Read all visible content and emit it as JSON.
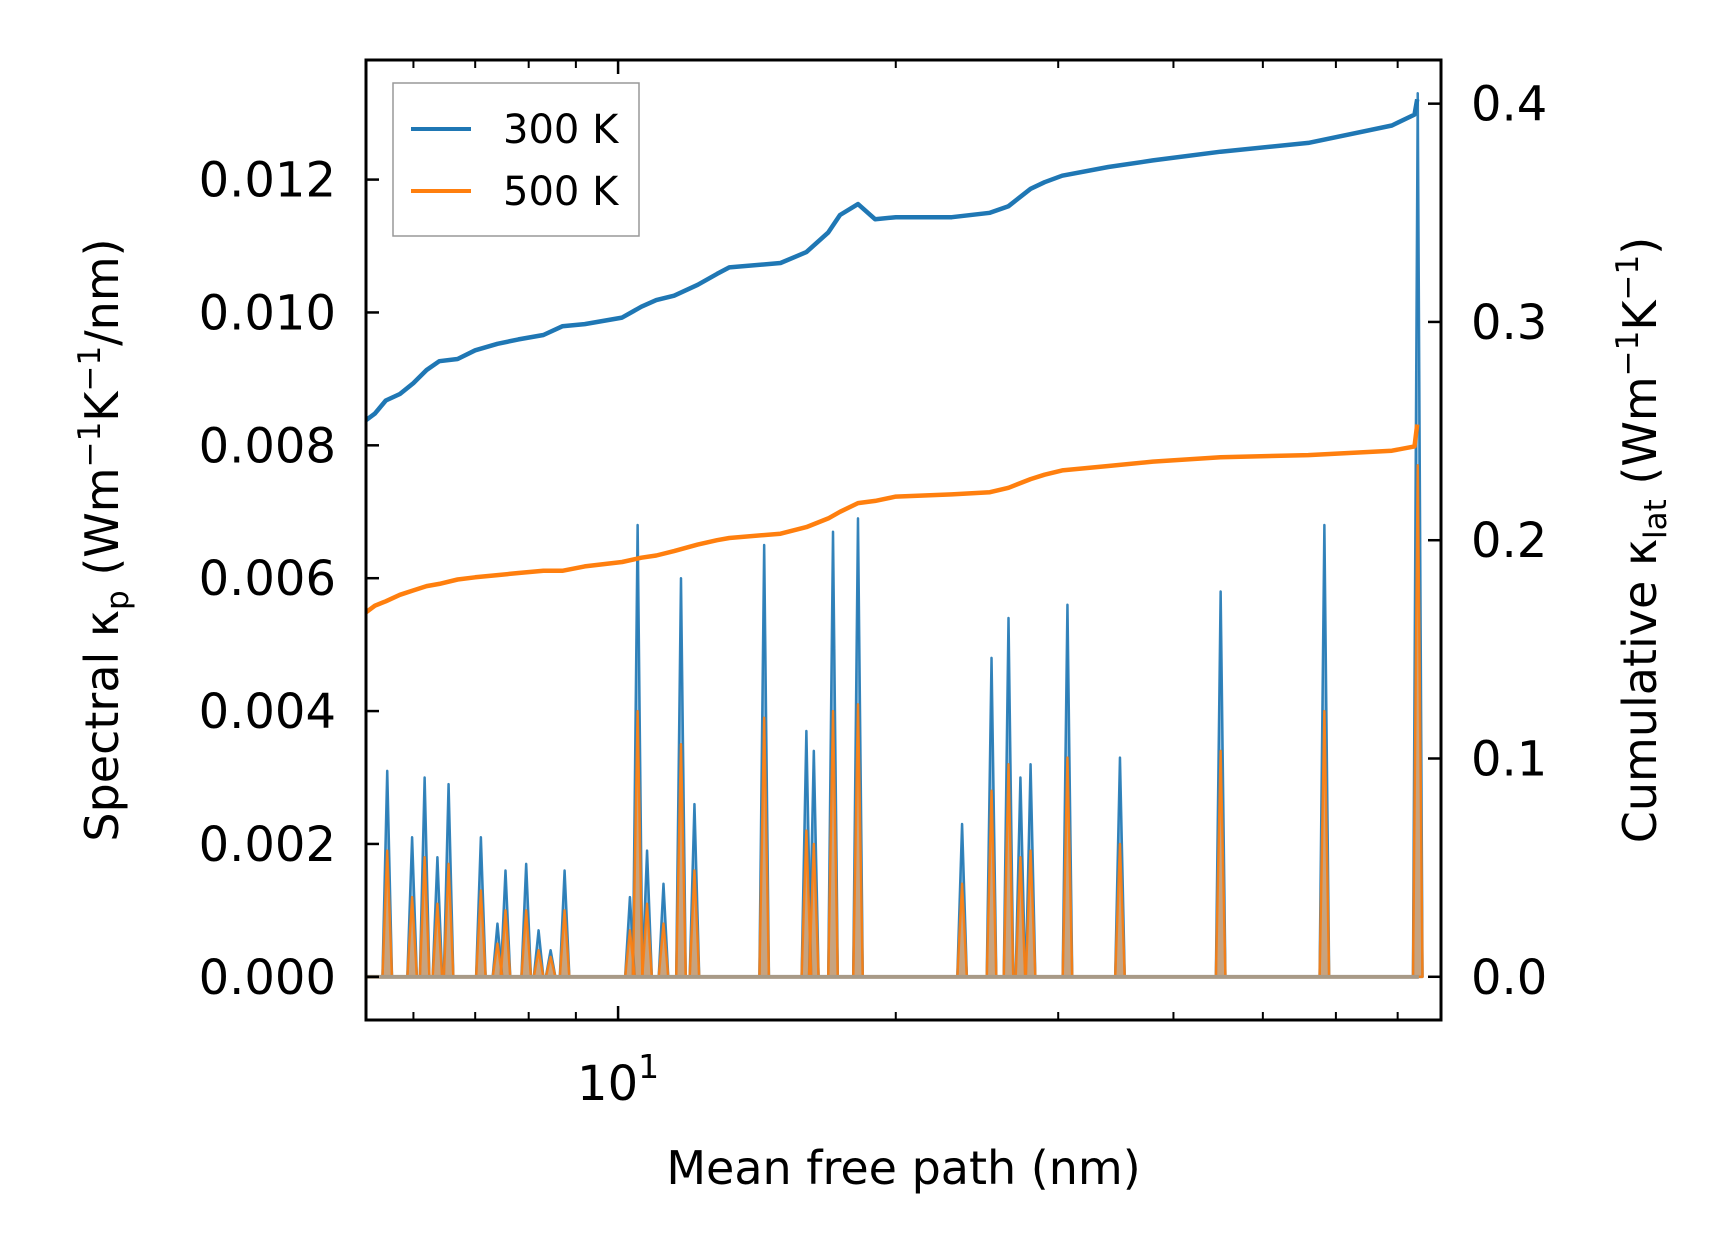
{
  "chart_data": {
    "type": "line",
    "x_scale": "log",
    "xlim": [
      5.33,
      78.0
    ],
    "xlabel": "Mean free path (nm)",
    "ylabel_left": {
      "prefix": "Spectral κ",
      "sub": "p",
      "units": " (Wm",
      "sup1": "−1",
      "mid": "K",
      "sup2": "−1",
      "tail": "/nm)"
    },
    "ylabel_right": {
      "prefix": "Cumulative κ",
      "sub": "lat",
      "units": " (Wm",
      "sup1": "−1",
      "mid": "K",
      "sup2": "−1",
      "tail": ")"
    },
    "ylim_left": [
      -0.00065,
      0.0138
    ],
    "ylim_right": [
      -0.0198,
      0.42
    ],
    "x_ticks_major": [
      {
        "value": 10,
        "base": "10",
        "exp": "1"
      }
    ],
    "x_ticks_minor": [
      6,
      7,
      8,
      9,
      20,
      30,
      40,
      50,
      60,
      70
    ],
    "y_ticks_left": [
      {
        "value": 0.0,
        "label": "0.000"
      },
      {
        "value": 0.002,
        "label": "0.002"
      },
      {
        "value": 0.004,
        "label": "0.004"
      },
      {
        "value": 0.006,
        "label": "0.006"
      },
      {
        "value": 0.008,
        "label": "0.008"
      },
      {
        "value": 0.01,
        "label": "0.010"
      },
      {
        "value": 0.012,
        "label": "0.012"
      }
    ],
    "y_ticks_right": [
      {
        "value": 0.0,
        "label": "0.0"
      },
      {
        "value": 0.1,
        "label": "0.1"
      },
      {
        "value": 0.2,
        "label": "0.2"
      },
      {
        "value": 0.3,
        "label": "0.3"
      },
      {
        "value": 0.4,
        "label": "0.4"
      }
    ],
    "legend": {
      "placement": "top-left",
      "entries": [
        {
          "label": "300 K",
          "color": "#1f77b4"
        },
        {
          "label": "500 K",
          "color": "#ff7f0e"
        }
      ]
    },
    "series": [
      {
        "name": "300 K",
        "kind": "cumulative",
        "axis": "right",
        "color": "#1f77b4",
        "x": [
          5.33,
          5.45,
          5.6,
          5.8,
          6.0,
          6.2,
          6.4,
          6.7,
          7.0,
          7.4,
          7.8,
          8.3,
          8.7,
          9.2,
          10.1,
          10.6,
          11.0,
          11.5,
          12.2,
          12.8,
          13.2,
          15.0,
          16.0,
          16.9,
          17.4,
          18.2,
          19.0,
          20.0,
          23.0,
          25.3,
          26.5,
          28.0,
          29.0,
          30.3,
          34.0,
          38.0,
          45.0,
          56.0,
          69.0,
          73.0,
          73.5
        ],
        "y": [
          0.255,
          0.258,
          0.264,
          0.267,
          0.272,
          0.278,
          0.282,
          0.283,
          0.287,
          0.29,
          0.292,
          0.294,
          0.298,
          0.299,
          0.302,
          0.307,
          0.31,
          0.312,
          0.317,
          0.322,
          0.325,
          0.327,
          0.332,
          0.341,
          0.349,
          0.354,
          0.347,
          0.348,
          0.348,
          0.35,
          0.353,
          0.361,
          0.364,
          0.367,
          0.371,
          0.374,
          0.378,
          0.382,
          0.39,
          0.395,
          0.402
        ]
      },
      {
        "name": "500 K",
        "kind": "cumulative",
        "axis": "right",
        "color": "#ff7f0e",
        "x": [
          5.33,
          5.45,
          5.6,
          5.8,
          6.0,
          6.2,
          6.4,
          6.7,
          7.0,
          7.4,
          7.8,
          8.3,
          8.7,
          9.2,
          10.1,
          10.6,
          11.0,
          11.5,
          12.2,
          12.8,
          13.2,
          15.0,
          16.0,
          16.9,
          17.4,
          18.2,
          19.0,
          20.0,
          23.0,
          25.3,
          26.5,
          28.0,
          29.0,
          30.3,
          34.0,
          38.0,
          45.0,
          56.0,
          69.0,
          73.0,
          73.5
        ],
        "y": [
          0.167,
          0.17,
          0.172,
          0.175,
          0.177,
          0.179,
          0.18,
          0.182,
          0.183,
          0.184,
          0.185,
          0.186,
          0.186,
          0.188,
          0.19,
          0.192,
          0.193,
          0.195,
          0.198,
          0.2,
          0.201,
          0.203,
          0.206,
          0.21,
          0.213,
          0.217,
          0.218,
          0.22,
          0.221,
          0.222,
          0.224,
          0.228,
          0.23,
          0.232,
          0.234,
          0.236,
          0.238,
          0.239,
          0.241,
          0.243,
          0.253
        ]
      },
      {
        "name": "300 K",
        "kind": "spectral",
        "axis": "left",
        "color": "#1f77b4",
        "peaks": [
          [
            5.62,
            0.0031
          ],
          [
            5.98,
            0.0021
          ],
          [
            6.17,
            0.003
          ],
          [
            6.37,
            0.0018
          ],
          [
            6.55,
            0.0029
          ],
          [
            7.1,
            0.0021
          ],
          [
            7.4,
            0.0008
          ],
          [
            7.55,
            0.0016
          ],
          [
            7.95,
            0.0017
          ],
          [
            8.2,
            0.0007
          ],
          [
            8.45,
            0.0004
          ],
          [
            8.75,
            0.0016
          ],
          [
            10.3,
            0.0012
          ],
          [
            10.5,
            0.0068
          ],
          [
            10.75,
            0.0019
          ],
          [
            11.2,
            0.0014
          ],
          [
            11.7,
            0.006
          ],
          [
            12.1,
            0.0026
          ],
          [
            14.4,
            0.0065
          ],
          [
            16.0,
            0.0037
          ],
          [
            16.3,
            0.0034
          ],
          [
            17.1,
            0.0067
          ],
          [
            18.2,
            0.0069
          ],
          [
            23.6,
            0.0023
          ],
          [
            25.4,
            0.0048
          ],
          [
            26.5,
            0.0054
          ],
          [
            27.3,
            0.003
          ],
          [
            28.0,
            0.0032
          ],
          [
            30.7,
            0.0056
          ],
          [
            35.0,
            0.0033
          ],
          [
            45.0,
            0.0058
          ],
          [
            58.3,
            0.0068
          ],
          [
            73.6,
            0.0133
          ]
        ]
      },
      {
        "name": "500 K",
        "kind": "spectral",
        "axis": "left",
        "color": "#ff7f0e",
        "peaks": [
          [
            5.62,
            0.0019
          ],
          [
            5.98,
            0.0012
          ],
          [
            6.17,
            0.0018
          ],
          [
            6.37,
            0.0011
          ],
          [
            6.55,
            0.0017
          ],
          [
            7.1,
            0.0013
          ],
          [
            7.4,
            0.0005
          ],
          [
            7.55,
            0.001
          ],
          [
            7.95,
            0.001
          ],
          [
            8.2,
            0.0004
          ],
          [
            8.45,
            0.0003
          ],
          [
            8.75,
            0.001
          ],
          [
            10.3,
            0.0007
          ],
          [
            10.5,
            0.004
          ],
          [
            10.75,
            0.0011
          ],
          [
            11.2,
            0.0008
          ],
          [
            11.7,
            0.0035
          ],
          [
            12.1,
            0.0016
          ],
          [
            14.4,
            0.0039
          ],
          [
            16.0,
            0.0022
          ],
          [
            16.3,
            0.002
          ],
          [
            17.1,
            0.004
          ],
          [
            18.2,
            0.0041
          ],
          [
            23.6,
            0.0014
          ],
          [
            25.4,
            0.0028
          ],
          [
            26.5,
            0.0032
          ],
          [
            27.3,
            0.0018
          ],
          [
            28.0,
            0.0019
          ],
          [
            30.7,
            0.0033
          ],
          [
            35.0,
            0.002
          ],
          [
            45.0,
            0.0034
          ],
          [
            58.3,
            0.004
          ],
          [
            73.6,
            0.0077
          ]
        ]
      }
    ]
  }
}
